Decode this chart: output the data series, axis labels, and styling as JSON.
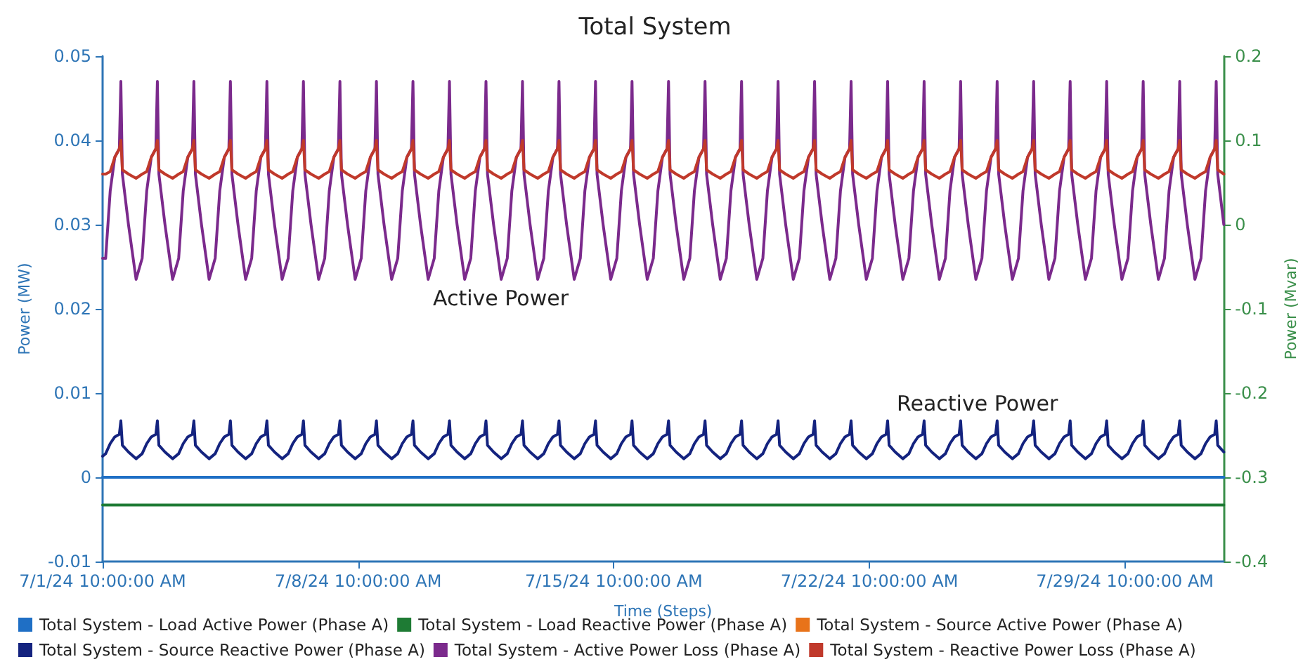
{
  "chart_data": {
    "type": "line",
    "title": "Total System",
    "xlabel": "Time (Steps)",
    "ylabel": "Power (MW)",
    "y2label": "Power (Mvar)",
    "annotations": [
      "Active Power",
      "Reactive Power"
    ],
    "xlim": [
      "--07-01T10:00",
      "--08-01T03:00"
    ],
    "xticks": [
      {
        "value": "--07-01T10:00",
        "label": "7/1/24 10:00:00 AM"
      },
      {
        "value": "--07-08T10:00",
        "label": "7/8/24 10:00:00 AM"
      },
      {
        "value": "--07-15T10:00",
        "label": "7/15/24 10:00:00 AM"
      },
      {
        "value": "--07-22T10:00",
        "label": "7/22/24 10:00:00 AM"
      },
      {
        "value": "--07-29T10:00",
        "label": "7/29/24 10:00:00 AM"
      }
    ],
    "ylim": [
      -0.01,
      0.05
    ],
    "yticks": [
      -0.01,
      0,
      0.01,
      0.02,
      0.03,
      0.04,
      0.05
    ],
    "y2lim": [
      -0.4,
      0.2
    ],
    "y2ticks": [
      -0.4,
      -0.3,
      -0.2,
      -0.1,
      0,
      0.1,
      0.2
    ],
    "grid": false,
    "legend": "bottom",
    "marker": "none",
    "line_style": "solid",
    "x": [
      "--07-01T10:00",
      "--07-01T12:00",
      "--07-01T15:00",
      "--07-01T18:00",
      "--07-01T21:00",
      "--07-01T22:00",
      "--07-01T23:00",
      "--07-02T03:00",
      "--07-02T08:00",
      "--07-02T12:00",
      "--07-02T15:00",
      "--07-02T18:00",
      "--07-02T21:00",
      "--07-02T22:00",
      "--07-02T23:00",
      "--07-03T03:00",
      "--07-03T08:00",
      "--07-03T12:00",
      "--07-03T15:00",
      "--07-03T18:00",
      "--07-03T21:00",
      "--07-03T22:00",
      "--07-03T23:00",
      "--07-04T03:00",
      "--07-04T08:00",
      "--07-04T12:00",
      "--07-04T15:00",
      "--07-04T18:00",
      "--07-04T21:00",
      "--07-04T22:00",
      "--07-04T23:00",
      "--07-05T03:00",
      "--07-05T08:00",
      "--07-05T12:00",
      "--07-05T15:00",
      "--07-05T18:00",
      "--07-05T21:00",
      "--07-05T22:00",
      "--07-05T23:00",
      "--07-06T03:00",
      "--07-06T08:00",
      "--07-06T12:00",
      "--07-06T15:00",
      "--07-06T18:00",
      "--07-06T21:00",
      "--07-06T22:00",
      "--07-06T23:00",
      "--07-07T03:00",
      "--07-07T08:00",
      "--07-07T12:00",
      "--07-07T15:00",
      "--07-07T18:00",
      "--07-07T21:00",
      "--07-07T22:00",
      "--07-07T23:00",
      "--07-08T03:00",
      "--07-08T08:00",
      "--07-08T12:00",
      "--07-08T15:00",
      "--07-08T18:00",
      "--07-08T21:00",
      "--07-08T22:00",
      "--07-08T23:00",
      "--07-09T03:00",
      "--07-09T08:00",
      "--07-09T12:00",
      "--07-09T15:00",
      "--07-09T18:00",
      "--07-09T21:00",
      "--07-09T22:00",
      "--07-09T23:00",
      "--07-10T03:00",
      "--07-10T08:00",
      "--07-10T12:00",
      "--07-10T15:00",
      "--07-10T18:00",
      "--07-10T21:00",
      "--07-10T22:00",
      "--07-10T23:00",
      "--07-11T03:00",
      "--07-11T08:00",
      "--07-11T12:00",
      "--07-11T15:00",
      "--07-11T18:00",
      "--07-11T21:00",
      "--07-11T22:00",
      "--07-11T23:00",
      "--07-12T03:00",
      "--07-12T08:00",
      "--07-12T12:00",
      "--07-12T15:00",
      "--07-12T18:00",
      "--07-12T21:00",
      "--07-12T22:00",
      "--07-12T23:00",
      "--07-13T03:00",
      "--07-13T08:00",
      "--07-13T12:00",
      "--07-13T15:00",
      "--07-13T18:00",
      "--07-13T21:00",
      "--07-13T22:00",
      "--07-13T23:00",
      "--07-14T03:00",
      "--07-14T08:00",
      "--07-14T12:00",
      "--07-14T15:00",
      "--07-14T18:00",
      "--07-14T21:00",
      "--07-14T22:00",
      "--07-14T23:00",
      "--07-15T03:00",
      "--07-15T08:00",
      "--07-15T12:00",
      "--07-15T15:00",
      "--07-15T18:00",
      "--07-15T21:00",
      "--07-15T22:00",
      "--07-15T23:00",
      "--07-16T03:00",
      "--07-16T08:00",
      "--07-16T12:00",
      "--07-16T15:00",
      "--07-16T18:00",
      "--07-16T21:00",
      "--07-16T22:00",
      "--07-16T23:00",
      "--07-17T03:00",
      "--07-17T08:00",
      "--07-17T12:00",
      "--07-17T15:00",
      "--07-17T18:00",
      "--07-17T21:00",
      "--07-17T22:00",
      "--07-17T23:00",
      "--07-18T03:00",
      "--07-18T08:00",
      "--07-18T12:00",
      "--07-18T15:00",
      "--07-18T18:00",
      "--07-18T21:00",
      "--07-18T22:00",
      "--07-18T23:00",
      "--07-19T03:00",
      "--07-19T08:00",
      "--07-19T12:00",
      "--07-19T15:00",
      "--07-19T18:00",
      "--07-19T21:00",
      "--07-19T22:00",
      "--07-19T23:00",
      "--07-20T03:00",
      "--07-20T08:00",
      "--07-20T12:00",
      "--07-20T15:00",
      "--07-20T18:00",
      "--07-20T21:00",
      "--07-20T22:00",
      "--07-20T23:00",
      "--07-21T03:00",
      "--07-21T08:00",
      "--07-21T12:00",
      "--07-21T15:00",
      "--07-21T18:00",
      "--07-21T21:00",
      "--07-21T22:00",
      "--07-21T23:00",
      "--07-22T03:00",
      "--07-22T08:00",
      "--07-22T12:00",
      "--07-22T15:00",
      "--07-22T18:00",
      "--07-22T21:00",
      "--07-22T22:00",
      "--07-22T23:00",
      "--07-23T03:00",
      "--07-23T08:00",
      "--07-23T12:00",
      "--07-23T15:00",
      "--07-23T18:00",
      "--07-23T21:00",
      "--07-23T22:00",
      "--07-23T23:00",
      "--07-24T03:00",
      "--07-24T08:00",
      "--07-24T12:00",
      "--07-24T15:00",
      "--07-24T18:00",
      "--07-24T21:00",
      "--07-24T22:00",
      "--07-24T23:00",
      "--07-25T03:00",
      "--07-25T08:00",
      "--07-25T12:00",
      "--07-25T15:00",
      "--07-25T18:00",
      "--07-25T21:00",
      "--07-25T22:00",
      "--07-25T23:00",
      "--07-26T03:00",
      "--07-26T08:00",
      "--07-26T12:00",
      "--07-26T15:00",
      "--07-26T18:00",
      "--07-26T21:00",
      "--07-26T22:00",
      "--07-26T23:00",
      "--07-27T03:00",
      "--07-27T08:00",
      "--07-27T12:00",
      "--07-27T15:00",
      "--07-27T18:00",
      "--07-27T21:00",
      "--07-27T22:00",
      "--07-27T23:00",
      "--07-28T03:00",
      "--07-28T08:00",
      "--07-28T12:00",
      "--07-28T15:00",
      "--07-28T18:00",
      "--07-28T21:00",
      "--07-28T22:00",
      "--07-28T23:00",
      "--07-29T03:00",
      "--07-29T08:00",
      "--07-29T12:00",
      "--07-29T15:00",
      "--07-29T18:00",
      "--07-29T21:00",
      "--07-29T22:00",
      "--07-29T23:00",
      "--07-30T03:00",
      "--07-30T08:00",
      "--07-30T12:00",
      "--07-30T15:00",
      "--07-30T18:00",
      "--07-30T21:00",
      "--07-30T22:00",
      "--07-30T23:00",
      "--07-31T03:00",
      "--07-31T08:00",
      "--07-31T12:00",
      "--07-31T15:00",
      "--07-31T18:00",
      "--07-31T21:00",
      "--07-31T22:00",
      "--07-31T23:00",
      "--08-01T03:00"
    ],
    "series": [
      {
        "name": "Total System - Load Active Power (Phase A)",
        "color": "#1f6fc5",
        "x": [
          "--07-01T10:00",
          "--08-01T03:00"
        ],
        "values": [
          0,
          0
        ]
      },
      {
        "name": "Total System - Load Reactive Power (Phase A)",
        "color": "#1e7b34",
        "axis": "y2",
        "x": [
          "--07-01T10:00",
          "--08-01T03:00"
        ],
        "values": [
          -0.333,
          -0.333
        ]
      },
      {
        "name": "Total System - Source Active Power (Phase A)",
        "color": "#e8731a",
        "values": [
          null,
          null,
          null,
          null,
          null,
          null,
          null,
          null,
          null,
          null,
          null,
          null,
          null,
          null,
          null,
          null,
          null,
          null,
          null,
          null,
          null,
          null,
          null,
          null,
          null,
          null,
          null,
          null,
          null,
          null,
          null,
          null,
          null,
          null,
          null,
          null,
          null,
          null,
          null,
          null,
          null,
          null,
          null,
          null,
          null,
          null,
          null,
          null,
          null,
          null,
          null,
          null,
          null,
          null,
          null,
          null,
          null,
          null,
          null,
          null,
          null,
          null,
          null,
          null,
          null,
          null,
          null,
          null,
          null,
          null,
          null,
          null,
          null,
          null,
          null,
          null,
          null,
          null,
          null,
          null,
          null,
          null,
          null,
          null,
          null,
          null,
          null,
          null,
          null,
          null,
          null,
          null,
          null,
          null,
          null,
          null,
          null,
          null,
          null,
          null,
          null,
          null,
          null,
          null,
          null,
          null,
          null,
          null,
          null,
          null,
          null,
          null,
          null,
          null,
          null,
          null,
          null,
          null,
          null,
          null,
          null,
          null,
          null,
          null,
          null,
          null,
          null,
          null,
          null,
          null,
          null,
          null,
          null,
          null,
          null,
          null,
          null,
          null,
          null,
          null,
          null,
          null,
          null,
          null,
          null,
          null,
          null,
          null,
          null,
          null,
          null,
          null,
          null,
          null,
          null,
          null,
          null,
          null,
          null,
          null,
          null,
          null,
          null,
          null,
          null,
          null,
          null,
          null,
          null,
          null,
          null,
          null,
          null,
          null,
          null,
          null,
          null,
          null,
          null,
          null,
          null,
          null,
          null,
          null,
          null,
          null,
          null,
          null,
          null,
          null,
          null,
          null,
          null,
          null,
          null,
          null,
          null,
          null,
          null,
          null,
          null,
          null,
          null,
          null,
          null,
          null,
          null,
          null,
          null,
          null,
          null,
          null,
          null,
          null,
          null,
          null,
          null,
          null,
          null,
          null,
          null,
          null,
          null,
          null,
          null,
          null,
          null,
          null,
          null,
          null,
          null,
          null,
          null,
          null,
          null,
          null,
          null,
          null,
          null,
          null,
          null,
          null,
          null,
          null,
          null,
          null,
          null,
          null
        ]
      },
      {
        "name": "Total System - Source Reactive Power (Phase A)",
        "color": "#14237f",
        "axis": "y2",
        "values": [
          -0.275,
          -0.272,
          -0.26,
          -0.252,
          -0.249,
          -0.233,
          -0.262,
          -0.27,
          -0.278,
          -0.272,
          -0.26,
          -0.252,
          -0.249,
          -0.233,
          -0.262,
          -0.27,
          -0.278,
          -0.272,
          -0.26,
          -0.252,
          -0.249,
          -0.233,
          -0.262,
          -0.27,
          -0.278,
          -0.272,
          -0.26,
          -0.252,
          -0.249,
          -0.233,
          -0.262,
          -0.27,
          -0.278,
          -0.272,
          -0.26,
          -0.252,
          -0.249,
          -0.233,
          -0.262,
          -0.27,
          -0.278,
          -0.272,
          -0.26,
          -0.252,
          -0.249,
          -0.233,
          -0.262,
          -0.27,
          -0.278,
          -0.272,
          -0.26,
          -0.252,
          -0.249,
          -0.233,
          -0.262,
          -0.27,
          -0.278,
          -0.272,
          -0.26,
          -0.252,
          -0.249,
          -0.233,
          -0.262,
          -0.27,
          -0.278,
          -0.272,
          -0.26,
          -0.252,
          -0.249,
          -0.233,
          -0.262,
          -0.27,
          -0.278,
          -0.272,
          -0.26,
          -0.252,
          -0.249,
          -0.233,
          -0.262,
          -0.27,
          -0.278,
          -0.272,
          -0.26,
          -0.252,
          -0.249,
          -0.233,
          -0.262,
          -0.27,
          -0.278,
          -0.272,
          -0.26,
          -0.252,
          -0.249,
          -0.233,
          -0.262,
          -0.27,
          -0.278,
          -0.272,
          -0.26,
          -0.252,
          -0.249,
          -0.233,
          -0.262,
          -0.27,
          -0.278,
          -0.272,
          -0.26,
          -0.252,
          -0.249,
          -0.233,
          -0.262,
          -0.27,
          -0.278,
          -0.272,
          -0.26,
          -0.252,
          -0.249,
          -0.233,
          -0.262,
          -0.27,
          -0.278,
          -0.272,
          -0.26,
          -0.252,
          -0.249,
          -0.233,
          -0.262,
          -0.27,
          -0.278,
          -0.272,
          -0.26,
          -0.252,
          -0.249,
          -0.233,
          -0.262,
          -0.27,
          -0.278,
          -0.272,
          -0.26,
          -0.252,
          -0.249,
          -0.233,
          -0.262,
          -0.27,
          -0.278,
          -0.272,
          -0.26,
          -0.252,
          -0.249,
          -0.233,
          -0.262,
          -0.27,
          -0.278,
          -0.272,
          -0.26,
          -0.252,
          -0.249,
          -0.233,
          -0.262,
          -0.27,
          -0.278,
          -0.272,
          -0.26,
          -0.252,
          -0.249,
          -0.233,
          -0.262,
          -0.27,
          -0.278,
          -0.272,
          -0.26,
          -0.252,
          -0.249,
          -0.233,
          -0.262,
          -0.27,
          -0.278,
          -0.272,
          -0.26,
          -0.252,
          -0.249,
          -0.233,
          -0.262,
          -0.27,
          -0.278,
          -0.272,
          -0.26,
          -0.252,
          -0.249,
          -0.233,
          -0.262,
          -0.27,
          -0.278,
          -0.272,
          -0.26,
          -0.252,
          -0.249,
          -0.233,
          -0.262,
          -0.27,
          -0.278,
          -0.272,
          -0.26,
          -0.252,
          -0.249,
          -0.233,
          -0.262,
          -0.27,
          -0.278,
          -0.272,
          -0.26,
          -0.252,
          -0.249,
          -0.233,
          -0.262,
          -0.27,
          -0.278,
          -0.272,
          -0.26,
          -0.252,
          -0.249,
          -0.233,
          -0.262,
          -0.27,
          -0.278,
          -0.272,
          -0.26,
          -0.252,
          -0.249,
          -0.233,
          -0.262,
          -0.27,
          -0.278,
          -0.272,
          -0.26,
          -0.252,
          -0.249,
          -0.233,
          -0.262,
          -0.27,
          -0.278,
          -0.272,
          -0.26,
          -0.252,
          -0.249,
          -0.233,
          -0.262,
          -0.27
        ]
      },
      {
        "name": "Total System - Active Power Loss (Phase A)",
        "color": "#7b2a8c",
        "values": [
          0.026,
          0.026,
          0.034,
          0.038,
          0.039,
          0.047,
          0.036,
          0.03,
          0.0235,
          0.026,
          0.034,
          0.038,
          0.039,
          0.047,
          0.036,
          0.03,
          0.0235,
          0.026,
          0.034,
          0.038,
          0.039,
          0.047,
          0.036,
          0.03,
          0.0235,
          0.026,
          0.034,
          0.038,
          0.039,
          0.047,
          0.036,
          0.03,
          0.0235,
          0.026,
          0.034,
          0.038,
          0.039,
          0.047,
          0.036,
          0.03,
          0.0235,
          0.026,
          0.034,
          0.038,
          0.039,
          0.047,
          0.036,
          0.03,
          0.0235,
          0.026,
          0.034,
          0.038,
          0.039,
          0.047,
          0.036,
          0.03,
          0.0235,
          0.026,
          0.034,
          0.038,
          0.039,
          0.047,
          0.036,
          0.03,
          0.0235,
          0.026,
          0.034,
          0.038,
          0.039,
          0.047,
          0.036,
          0.03,
          0.0235,
          0.026,
          0.034,
          0.038,
          0.039,
          0.047,
          0.036,
          0.03,
          0.0235,
          0.026,
          0.034,
          0.038,
          0.039,
          0.047,
          0.036,
          0.03,
          0.0235,
          0.026,
          0.034,
          0.038,
          0.039,
          0.047,
          0.036,
          0.03,
          0.0235,
          0.026,
          0.034,
          0.038,
          0.039,
          0.047,
          0.036,
          0.03,
          0.0235,
          0.026,
          0.034,
          0.038,
          0.039,
          0.047,
          0.036,
          0.03,
          0.0235,
          0.026,
          0.034,
          0.038,
          0.039,
          0.047,
          0.036,
          0.03,
          0.0235,
          0.026,
          0.034,
          0.038,
          0.039,
          0.047,
          0.036,
          0.03,
          0.0235,
          0.026,
          0.034,
          0.038,
          0.039,
          0.047,
          0.036,
          0.03,
          0.0235,
          0.026,
          0.034,
          0.038,
          0.039,
          0.047,
          0.036,
          0.03,
          0.0235,
          0.026,
          0.034,
          0.038,
          0.039,
          0.047,
          0.036,
          0.03,
          0.0235,
          0.026,
          0.034,
          0.038,
          0.039,
          0.047,
          0.036,
          0.03,
          0.0235,
          0.026,
          0.034,
          0.038,
          0.039,
          0.047,
          0.036,
          0.03,
          0.0235,
          0.026,
          0.034,
          0.038,
          0.039,
          0.047,
          0.036,
          0.03,
          0.0235,
          0.026,
          0.034,
          0.038,
          0.039,
          0.047,
          0.036,
          0.03,
          0.0235,
          0.026,
          0.034,
          0.038,
          0.039,
          0.047,
          0.036,
          0.03,
          0.0235,
          0.026,
          0.034,
          0.038,
          0.039,
          0.047,
          0.036,
          0.03,
          0.0235,
          0.026,
          0.034,
          0.038,
          0.039,
          0.047,
          0.036,
          0.03,
          0.0235,
          0.026,
          0.034,
          0.038,
          0.039,
          0.047,
          0.036,
          0.03,
          0.0235,
          0.026,
          0.034,
          0.038,
          0.039,
          0.047,
          0.036,
          0.03,
          0.0235,
          0.026,
          0.034,
          0.038,
          0.039,
          0.047,
          0.036,
          0.03,
          0.0235,
          0.026,
          0.034,
          0.038,
          0.039,
          0.047,
          0.036,
          0.03,
          0.0235,
          0.026,
          0.034,
          0.038,
          0.039,
          0.047,
          0.036,
          0.03
        ]
      },
      {
        "name": "Total System - Reactive Power Loss (Phase A)",
        "color": "#c0392b",
        "axis": "y2",
        "values": [
          0.06,
          0.06,
          0.063,
          0.08,
          0.09,
          0.1,
          0.065,
          0.06,
          0.055,
          0.06,
          0.063,
          0.08,
          0.09,
          0.1,
          0.065,
          0.06,
          0.055,
          0.06,
          0.063,
          0.08,
          0.09,
          0.1,
          0.065,
          0.06,
          0.055,
          0.06,
          0.063,
          0.08,
          0.09,
          0.1,
          0.065,
          0.06,
          0.055,
          0.06,
          0.063,
          0.08,
          0.09,
          0.1,
          0.065,
          0.06,
          0.055,
          0.06,
          0.063,
          0.08,
          0.09,
          0.1,
          0.065,
          0.06,
          0.055,
          0.06,
          0.063,
          0.08,
          0.09,
          0.1,
          0.065,
          0.06,
          0.055,
          0.06,
          0.063,
          0.08,
          0.09,
          0.1,
          0.065,
          0.06,
          0.055,
          0.06,
          0.063,
          0.08,
          0.09,
          0.1,
          0.065,
          0.06,
          0.055,
          0.06,
          0.063,
          0.08,
          0.09,
          0.1,
          0.065,
          0.06,
          0.055,
          0.06,
          0.063,
          0.08,
          0.09,
          0.1,
          0.065,
          0.06,
          0.055,
          0.06,
          0.063,
          0.08,
          0.09,
          0.1,
          0.065,
          0.06,
          0.055,
          0.06,
          0.063,
          0.08,
          0.09,
          0.1,
          0.065,
          0.06,
          0.055,
          0.06,
          0.063,
          0.08,
          0.09,
          0.1,
          0.065,
          0.06,
          0.055,
          0.06,
          0.063,
          0.08,
          0.09,
          0.1,
          0.065,
          0.06,
          0.055,
          0.06,
          0.063,
          0.08,
          0.09,
          0.1,
          0.065,
          0.06,
          0.055,
          0.06,
          0.063,
          0.08,
          0.09,
          0.1,
          0.065,
          0.06,
          0.055,
          0.06,
          0.063,
          0.08,
          0.09,
          0.1,
          0.065,
          0.06,
          0.055,
          0.06,
          0.063,
          0.08,
          0.09,
          0.1,
          0.065,
          0.06,
          0.055,
          0.06,
          0.063,
          0.08,
          0.09,
          0.1,
          0.065,
          0.06,
          0.055,
          0.06,
          0.063,
          0.08,
          0.09,
          0.1,
          0.065,
          0.06,
          0.055,
          0.06,
          0.063,
          0.08,
          0.09,
          0.1,
          0.065,
          0.06,
          0.055,
          0.06,
          0.063,
          0.08,
          0.09,
          0.1,
          0.065,
          0.06,
          0.055,
          0.06,
          0.063,
          0.08,
          0.09,
          0.1,
          0.065,
          0.06,
          0.055,
          0.06,
          0.063,
          0.08,
          0.09,
          0.1,
          0.065,
          0.06,
          0.055,
          0.06,
          0.063,
          0.08,
          0.09,
          0.1,
          0.065,
          0.06,
          0.055,
          0.06,
          0.063,
          0.08,
          0.09,
          0.1,
          0.065,
          0.06,
          0.055,
          0.06,
          0.063,
          0.08,
          0.09,
          0.1,
          0.065,
          0.06,
          0.055,
          0.06,
          0.063,
          0.08,
          0.09,
          0.1,
          0.065,
          0.06,
          0.055,
          0.06,
          0.063,
          0.08,
          0.09,
          0.1,
          0.065,
          0.06,
          0.055,
          0.06,
          0.063,
          0.08,
          0.09,
          0.1,
          0.065,
          0.06
        ]
      }
    ]
  }
}
